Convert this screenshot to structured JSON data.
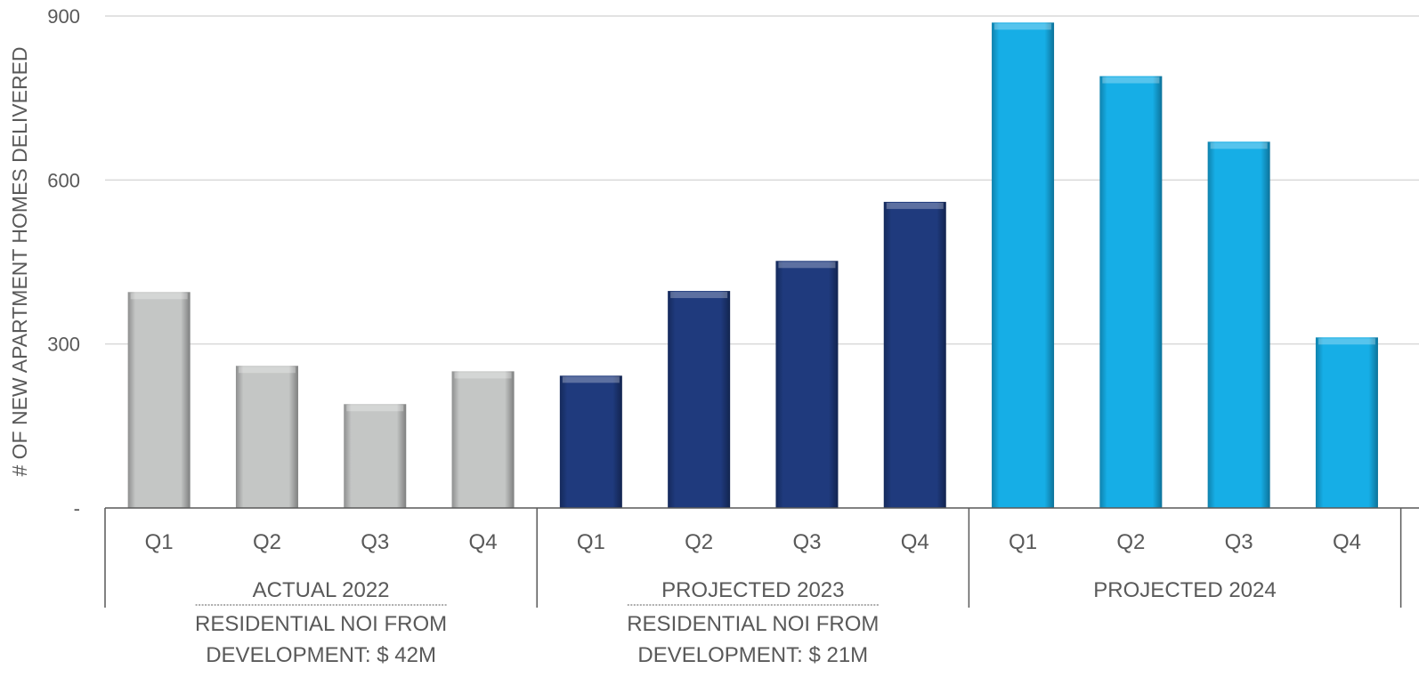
{
  "chart_data": {
    "type": "bar",
    "ylabel": "# OF NEW APARTMENT HOMES DELIVERED",
    "ylim": [
      0,
      900
    ],
    "yticks": [
      {
        "value": 0,
        "label": "-"
      },
      {
        "value": 300,
        "label": "300"
      },
      {
        "value": 600,
        "label": "600"
      },
      {
        "value": 900,
        "label": "900"
      }
    ],
    "grid": true,
    "categories": [
      "Q1",
      "Q2",
      "Q3",
      "Q4",
      "Q1",
      "Q2",
      "Q3",
      "Q4",
      "Q1",
      "Q2",
      "Q3",
      "Q4"
    ],
    "groups": [
      {
        "label": "ACTUAL 2022",
        "color": "#c4c6c5",
        "values": [
          395,
          260,
          190,
          250
        ],
        "note": [
          "RESIDENTIAL NOI FROM",
          "DEVELOPMENT:  $ 42M"
        ]
      },
      {
        "label": "PROJECTED 2023",
        "color": "#1f3a7d",
        "values": [
          242,
          397,
          452,
          560
        ],
        "note": [
          "RESIDENTIAL NOI FROM",
          "DEVELOPMENT:  $ 21M"
        ]
      },
      {
        "label": "PROJECTED 2024",
        "color": "#16aee6",
        "values": [
          888,
          790,
          670,
          312
        ],
        "note": []
      }
    ]
  }
}
